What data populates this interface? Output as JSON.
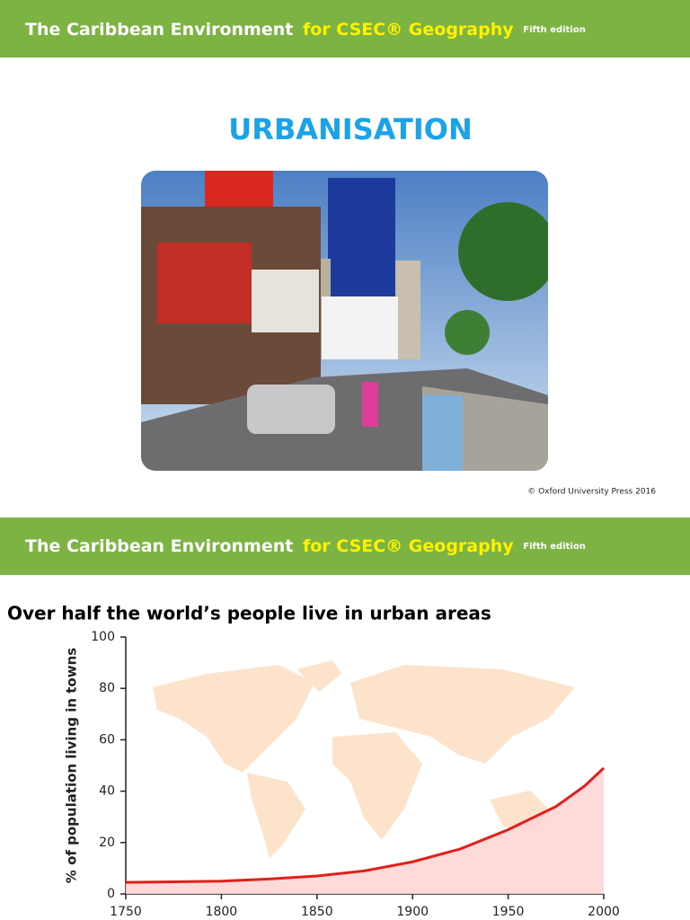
{
  "header": {
    "title": "The Caribbean Environment",
    "highlight": "for CSEC® Geography",
    "edition": "Fifth edition"
  },
  "slide": {
    "title": "URBANISATION",
    "copyright": "© Oxford University Press 2016"
  },
  "chart_data": {
    "type": "line",
    "title": "Over half the world’s people live in urban areas",
    "y_label": "% of population living in towns",
    "x": [
      1750,
      1775,
      1800,
      1825,
      1850,
      1875,
      1900,
      1925,
      1950,
      1975,
      1990,
      2000
    ],
    "values": [
      4.5,
      4.7,
      5,
      5.8,
      7,
      9,
      12.5,
      17.5,
      25,
      34,
      42,
      49
    ],
    "color": "#e0201b",
    "area_color": "#ffd3d3",
    "xlim": [
      1750,
      2000
    ],
    "ylim": [
      0,
      100
    ],
    "xticks": [
      1750,
      1800,
      1850,
      1900,
      1950,
      2000
    ],
    "yticks": [
      0,
      20,
      40,
      60,
      80,
      100
    ]
  }
}
